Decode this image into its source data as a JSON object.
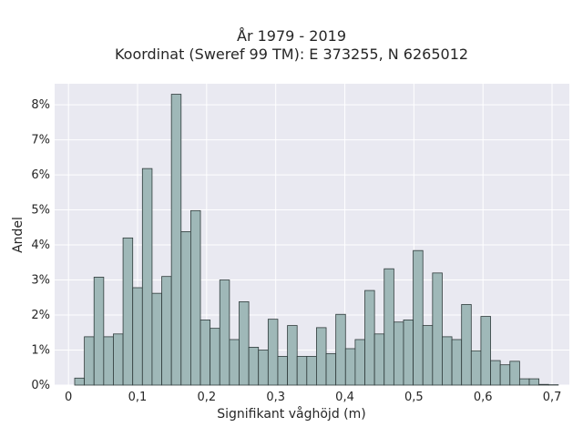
{
  "chart_data": {
    "type": "bar",
    "subtype": "histogram",
    "title": "År 1979 - 2019",
    "subtitle": "Koordinat (Sweref 99 TM): E 373255, N 6265012",
    "xlabel": "Signifikant våghöjd (m)",
    "ylabel": "Andel",
    "xlim": [
      -0.02,
      0.725
    ],
    "ylim": [
      0,
      8.6
    ],
    "bin_width": 0.014,
    "x_ticks": [
      0,
      0.1,
      0.2,
      0.3,
      0.4,
      0.5,
      0.6,
      0.7
    ],
    "x_tick_labels": [
      "0",
      "0,1",
      "0,2",
      "0,3",
      "0,4",
      "0,5",
      "0,6",
      "0,7"
    ],
    "y_ticks": [
      0,
      1,
      2,
      3,
      4,
      5,
      6,
      7,
      8
    ],
    "y_tick_labels": [
      "0%",
      "1%",
      "2%",
      "3%",
      "4%",
      "5%",
      "6%",
      "7%",
      "8%"
    ],
    "grid": true,
    "background": "#e9e9f1",
    "bar_color": "#9fb8b8",
    "bar_edge_color": "#2f3b3b",
    "bins_start": [
      0.009,
      0.023,
      0.037,
      0.051,
      0.065,
      0.079,
      0.093,
      0.107,
      0.121,
      0.135,
      0.149,
      0.163,
      0.177,
      0.191,
      0.205,
      0.219,
      0.233,
      0.247,
      0.261,
      0.275,
      0.289,
      0.303,
      0.317,
      0.331,
      0.345,
      0.359,
      0.373,
      0.387,
      0.401,
      0.415,
      0.429,
      0.443,
      0.457,
      0.471,
      0.485,
      0.499,
      0.513,
      0.527,
      0.541,
      0.555,
      0.569,
      0.583,
      0.597,
      0.611,
      0.625,
      0.639,
      0.653,
      0.667,
      0.681,
      0.695
    ],
    "values": [
      0.2,
      1.38,
      3.08,
      1.38,
      1.46,
      4.2,
      2.78,
      6.18,
      2.62,
      3.1,
      8.3,
      4.38,
      4.98,
      1.86,
      1.62,
      3.0,
      1.3,
      2.38,
      1.08,
      1.0,
      1.88,
      0.82,
      1.7,
      0.82,
      0.82,
      1.64,
      0.9,
      2.02,
      1.04,
      1.3,
      2.7,
      1.46,
      3.32,
      1.8,
      1.86,
      3.84,
      1.7,
      3.2,
      1.38,
      1.3,
      2.3,
      0.98,
      1.96,
      0.7,
      0.58,
      0.68,
      0.18,
      0.18,
      0.02,
      0.01
    ]
  }
}
